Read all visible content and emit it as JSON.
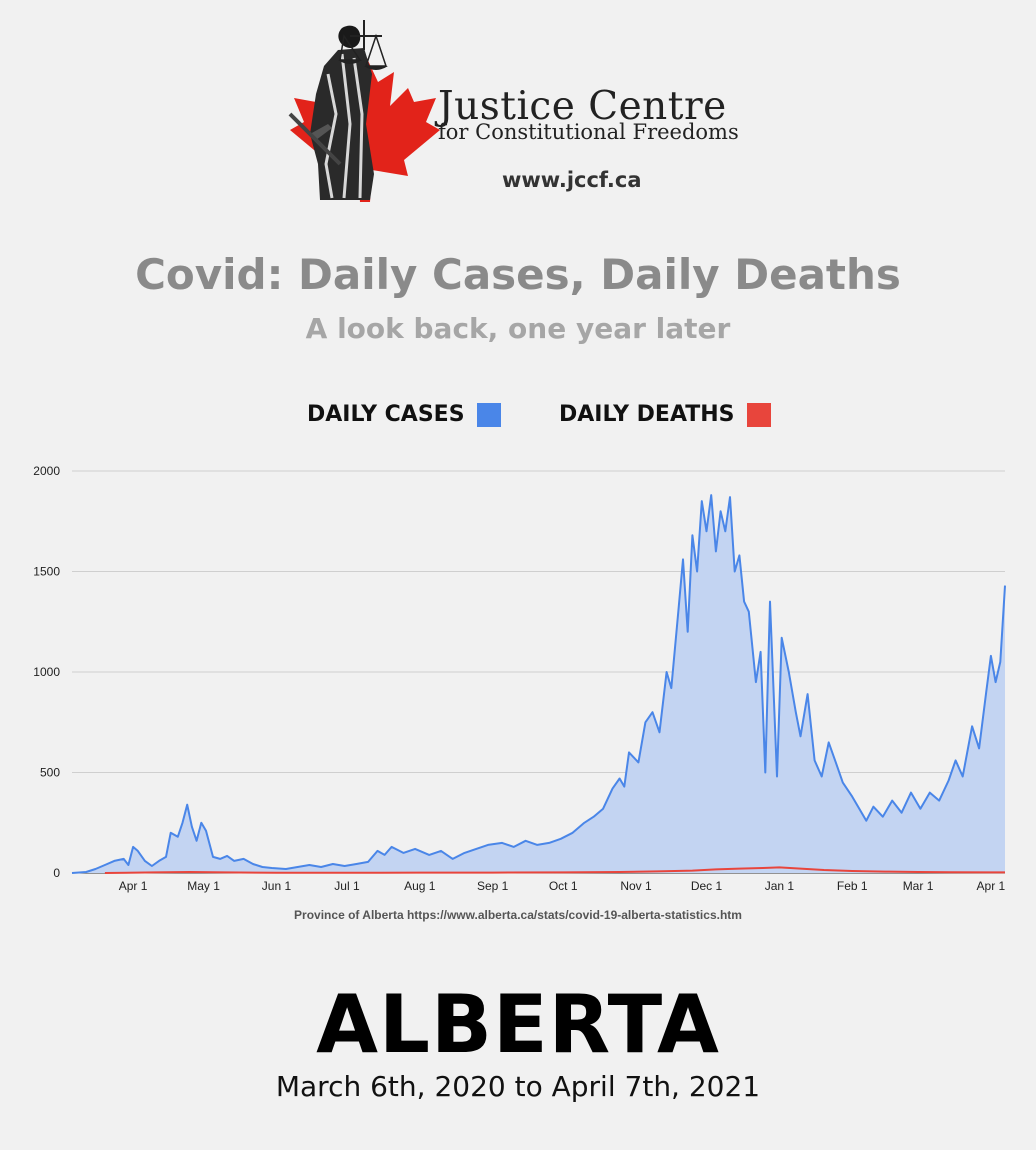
{
  "header": {
    "org_name": "Justice Centre",
    "org_subtitle": "for Constitutional Freedoms",
    "website": "www.jccf.ca"
  },
  "title": "Covid: Daily Cases, Daily Deaths",
  "subtitle": "A look back, one year later",
  "legend": {
    "cases_label": "DAILY CASES",
    "deaths_label": "DAILY DEATHS",
    "cases_color": "#4a86e8",
    "deaths_color": "#e8453c"
  },
  "source": "Province of Alberta https://www.alberta.ca/stats/covid-19-alberta-statistics.htm",
  "region": "ALBERTA",
  "date_range": "March 6th, 2020 to April 7th, 2021",
  "colors": {
    "background": "#f1f1f1",
    "title_gray": "#8a8a8a",
    "cases_line": "#4a86e8",
    "cases_fill": "#c3d4f2",
    "deaths_line": "#e8453c",
    "logo_red": "#e2231a"
  },
  "icons": [
    "lady-justice-icon",
    "maple-leaf-icon"
  ],
  "chart_data": {
    "type": "area",
    "ylim": [
      0,
      2000
    ],
    "yticks": [
      0,
      500,
      1000,
      1500,
      2000
    ],
    "grid": true,
    "legend_position": "top-center",
    "x_range": [
      "2020-03-06",
      "2021-04-07"
    ],
    "xticks": [
      {
        "date": "2020-04-01",
        "label": "Apr 1"
      },
      {
        "date": "2020-05-01",
        "label": "May 1"
      },
      {
        "date": "2020-06-01",
        "label": "Jun 1"
      },
      {
        "date": "2020-07-01",
        "label": "Jul 1"
      },
      {
        "date": "2020-08-01",
        "label": "Aug 1"
      },
      {
        "date": "2020-09-01",
        "label": "Sep 1"
      },
      {
        "date": "2020-10-01",
        "label": "Oct 1"
      },
      {
        "date": "2020-11-01",
        "label": "Nov 1"
      },
      {
        "date": "2020-12-01",
        "label": "Dec 1"
      },
      {
        "date": "2021-01-01",
        "label": "Jan 1"
      },
      {
        "date": "2021-02-01",
        "label": "Feb 1"
      },
      {
        "date": "2021-03-01",
        "label": "Mar 1"
      },
      {
        "date": "2021-04-01",
        "label": "Apr 1"
      }
    ],
    "series": [
      {
        "name": "DAILY CASES",
        "points": [
          [
            "2020-03-06",
            0
          ],
          [
            "2020-03-12",
            5
          ],
          [
            "2020-03-16",
            20
          ],
          [
            "2020-03-20",
            40
          ],
          [
            "2020-03-24",
            60
          ],
          [
            "2020-03-28",
            70
          ],
          [
            "2020-03-30",
            40
          ],
          [
            "2020-04-01",
            130
          ],
          [
            "2020-04-03",
            110
          ],
          [
            "2020-04-06",
            60
          ],
          [
            "2020-04-09",
            35
          ],
          [
            "2020-04-12",
            60
          ],
          [
            "2020-04-15",
            80
          ],
          [
            "2020-04-17",
            200
          ],
          [
            "2020-04-20",
            180
          ],
          [
            "2020-04-22",
            250
          ],
          [
            "2020-04-24",
            340
          ],
          [
            "2020-04-26",
            230
          ],
          [
            "2020-04-28",
            160
          ],
          [
            "2020-04-30",
            250
          ],
          [
            "2020-05-02",
            210
          ],
          [
            "2020-05-05",
            80
          ],
          [
            "2020-05-08",
            70
          ],
          [
            "2020-05-11",
            85
          ],
          [
            "2020-05-14",
            60
          ],
          [
            "2020-05-18",
            70
          ],
          [
            "2020-05-22",
            45
          ],
          [
            "2020-05-26",
            30
          ],
          [
            "2020-05-30",
            25
          ],
          [
            "2020-06-05",
            20
          ],
          [
            "2020-06-10",
            30
          ],
          [
            "2020-06-15",
            40
          ],
          [
            "2020-06-20",
            30
          ],
          [
            "2020-06-25",
            45
          ],
          [
            "2020-06-30",
            35
          ],
          [
            "2020-07-05",
            45
          ],
          [
            "2020-07-10",
            55
          ],
          [
            "2020-07-14",
            110
          ],
          [
            "2020-07-17",
            90
          ],
          [
            "2020-07-20",
            130
          ],
          [
            "2020-07-25",
            100
          ],
          [
            "2020-07-30",
            120
          ],
          [
            "2020-08-05",
            90
          ],
          [
            "2020-08-10",
            110
          ],
          [
            "2020-08-15",
            70
          ],
          [
            "2020-08-20",
            100
          ],
          [
            "2020-08-25",
            120
          ],
          [
            "2020-08-30",
            140
          ],
          [
            "2020-09-05",
            150
          ],
          [
            "2020-09-10",
            130
          ],
          [
            "2020-09-15",
            160
          ],
          [
            "2020-09-20",
            140
          ],
          [
            "2020-09-25",
            150
          ],
          [
            "2020-09-30",
            170
          ],
          [
            "2020-10-05",
            200
          ],
          [
            "2020-10-10",
            250
          ],
          [
            "2020-10-14",
            280
          ],
          [
            "2020-10-18",
            320
          ],
          [
            "2020-10-22",
            420
          ],
          [
            "2020-10-25",
            470
          ],
          [
            "2020-10-27",
            430
          ],
          [
            "2020-10-29",
            600
          ],
          [
            "2020-11-02",
            550
          ],
          [
            "2020-11-05",
            750
          ],
          [
            "2020-11-08",
            800
          ],
          [
            "2020-11-11",
            700
          ],
          [
            "2020-11-14",
            1000
          ],
          [
            "2020-11-16",
            920
          ],
          [
            "2020-11-19",
            1300
          ],
          [
            "2020-11-21",
            1560
          ],
          [
            "2020-11-23",
            1200
          ],
          [
            "2020-11-25",
            1680
          ],
          [
            "2020-11-27",
            1500
          ],
          [
            "2020-11-29",
            1850
          ],
          [
            "2020-12-01",
            1700
          ],
          [
            "2020-12-03",
            1880
          ],
          [
            "2020-12-05",
            1600
          ],
          [
            "2020-12-07",
            1800
          ],
          [
            "2020-12-09",
            1700
          ],
          [
            "2020-12-11",
            1870
          ],
          [
            "2020-12-13",
            1500
          ],
          [
            "2020-12-15",
            1580
          ],
          [
            "2020-12-17",
            1350
          ],
          [
            "2020-12-19",
            1300
          ],
          [
            "2020-12-22",
            950
          ],
          [
            "2020-12-24",
            1100
          ],
          [
            "2020-12-26",
            500
          ],
          [
            "2020-12-28",
            1350
          ],
          [
            "2020-12-31",
            480
          ],
          [
            "2021-01-02",
            1170
          ],
          [
            "2021-01-05",
            1000
          ],
          [
            "2021-01-08",
            800
          ],
          [
            "2021-01-10",
            680
          ],
          [
            "2021-01-13",
            890
          ],
          [
            "2021-01-16",
            560
          ],
          [
            "2021-01-19",
            480
          ],
          [
            "2021-01-22",
            650
          ],
          [
            "2021-01-25",
            550
          ],
          [
            "2021-01-28",
            450
          ],
          [
            "2021-02-01",
            380
          ],
          [
            "2021-02-04",
            320
          ],
          [
            "2021-02-07",
            260
          ],
          [
            "2021-02-10",
            330
          ],
          [
            "2021-02-14",
            280
          ],
          [
            "2021-02-18",
            360
          ],
          [
            "2021-02-22",
            300
          ],
          [
            "2021-02-26",
            400
          ],
          [
            "2021-03-02",
            320
          ],
          [
            "2021-03-06",
            400
          ],
          [
            "2021-03-10",
            360
          ],
          [
            "2021-03-14",
            460
          ],
          [
            "2021-03-17",
            560
          ],
          [
            "2021-03-20",
            480
          ],
          [
            "2021-03-24",
            730
          ],
          [
            "2021-03-27",
            620
          ],
          [
            "2021-03-30",
            900
          ],
          [
            "2021-04-01",
            1080
          ],
          [
            "2021-04-03",
            950
          ],
          [
            "2021-04-05",
            1050
          ],
          [
            "2021-04-07",
            1430
          ]
        ]
      },
      {
        "name": "DAILY DEATHS",
        "points": [
          [
            "2020-03-20",
            0
          ],
          [
            "2020-04-10",
            3
          ],
          [
            "2020-04-25",
            5
          ],
          [
            "2020-05-10",
            3
          ],
          [
            "2020-06-01",
            1
          ],
          [
            "2020-07-01",
            1
          ],
          [
            "2020-08-01",
            2
          ],
          [
            "2020-09-01",
            2
          ],
          [
            "2020-10-01",
            3
          ],
          [
            "2020-10-25",
            5
          ],
          [
            "2020-11-10",
            8
          ],
          [
            "2020-11-25",
            12
          ],
          [
            "2020-12-05",
            18
          ],
          [
            "2020-12-15",
            22
          ],
          [
            "2020-12-25",
            25
          ],
          [
            "2021-01-01",
            28
          ],
          [
            "2021-01-10",
            22
          ],
          [
            "2021-01-20",
            15
          ],
          [
            "2021-02-01",
            10
          ],
          [
            "2021-02-15",
            7
          ],
          [
            "2021-03-01",
            5
          ],
          [
            "2021-03-15",
            4
          ],
          [
            "2021-04-01",
            3
          ],
          [
            "2021-04-07",
            3
          ]
        ]
      }
    ]
  }
}
